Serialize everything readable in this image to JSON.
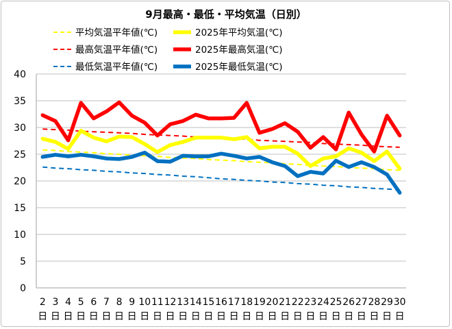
{
  "chart_data": {
    "type": "line",
    "title": "9月最高・最低・平均気温（日別）",
    "xlabel": "",
    "ylabel": "",
    "ylim": [
      0,
      40
    ],
    "yticks": [
      0,
      5,
      10,
      15,
      20,
      25,
      30,
      35,
      40
    ],
    "grid": true,
    "legend_position": "top",
    "x_unit": "日",
    "categories": [
      "2",
      "3",
      "4",
      "5",
      "6",
      "7",
      "8",
      "9",
      "10",
      "11",
      "12",
      "13",
      "14",
      "15",
      "16",
      "17",
      "18",
      "19",
      "20",
      "21",
      "22",
      "23",
      "24",
      "25",
      "26",
      "27",
      "28",
      "29",
      "30"
    ],
    "series": [
      {
        "name": "平均気温平年値(℃)",
        "color": "#FFFF00",
        "style": "dashed",
        "values": [
          25.8,
          25.7,
          25.5,
          25.4,
          25.3,
          25.1,
          25.0,
          24.8,
          24.7,
          24.6,
          24.4,
          24.3,
          24.2,
          24.0,
          23.9,
          23.8,
          23.6,
          23.5,
          23.4,
          23.2,
          23.1,
          22.9,
          22.8,
          22.7,
          22.5,
          22.4,
          22.3,
          22.1,
          22.0
        ]
      },
      {
        "name": "2025年平均気温(℃)",
        "color": "#FFFF00",
        "style": "solid",
        "values": [
          27.9,
          27.3,
          26.0,
          29.4,
          28.1,
          27.4,
          28.3,
          28.2,
          26.9,
          25.4,
          26.7,
          27.3,
          28.1,
          28.1,
          28.1,
          27.8,
          28.2,
          26.1,
          26.4,
          26.4,
          25.1,
          22.8,
          24.2,
          24.6,
          26.1,
          25.3,
          23.7,
          25.5,
          22.3
        ]
      },
      {
        "name": "最高気温平年値(℃)",
        "color": "#FF0000",
        "style": "dashed",
        "values": [
          29.7,
          29.6,
          29.5,
          29.3,
          29.2,
          29.1,
          29.0,
          28.9,
          28.7,
          28.6,
          28.5,
          28.4,
          28.2,
          28.1,
          28.0,
          27.9,
          27.8,
          27.6,
          27.5,
          27.4,
          27.3,
          27.2,
          27.0,
          26.9,
          26.8,
          26.7,
          26.5,
          26.4,
          26.3
        ]
      },
      {
        "name": "2025年最高気温(℃)",
        "color": "#FF0000",
        "style": "solid",
        "values": [
          32.3,
          31.2,
          27.6,
          34.6,
          31.7,
          33.0,
          34.7,
          32.2,
          30.9,
          28.5,
          30.6,
          31.2,
          32.4,
          31.7,
          31.7,
          31.8,
          34.6,
          29.0,
          29.7,
          30.8,
          29.2,
          26.2,
          28.2,
          25.9,
          32.8,
          28.7,
          25.5,
          32.2,
          28.5
        ]
      },
      {
        "name": "最低気温平年値(℃)",
        "color": "#0070C0",
        "style": "dashed",
        "values": [
          22.6,
          22.4,
          22.3,
          22.1,
          22.0,
          21.8,
          21.7,
          21.5,
          21.4,
          21.2,
          21.1,
          20.9,
          20.8,
          20.6,
          20.4,
          20.3,
          20.1,
          20.0,
          19.8,
          19.7,
          19.5,
          19.4,
          19.2,
          19.1,
          18.9,
          18.8,
          18.6,
          18.5,
          18.3
        ]
      },
      {
        "name": "2025年最低気温(℃)",
        "color": "#0070C0",
        "style": "solid",
        "values": [
          24.5,
          24.9,
          24.6,
          24.9,
          24.6,
          24.2,
          24.1,
          24.5,
          25.3,
          23.7,
          23.6,
          24.7,
          24.6,
          24.6,
          25.1,
          24.7,
          24.2,
          24.5,
          23.5,
          22.8,
          20.9,
          21.7,
          21.4,
          23.8,
          22.6,
          23.5,
          22.6,
          21.2,
          17.8
        ]
      }
    ]
  }
}
